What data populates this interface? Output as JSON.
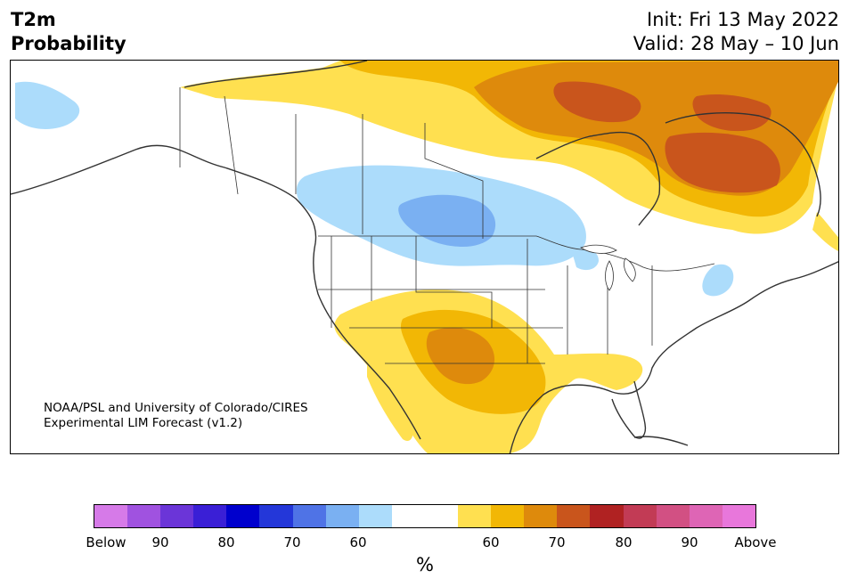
{
  "title": {
    "left_line1": "T2m",
    "left_line2": "Probability",
    "init": "Init: Fri 13 May 2022",
    "valid": "Valid: 28 May – 10 Jun"
  },
  "credit": {
    "line1": "NOAA/PSL and University of Colorado/CIRES",
    "line2": "Experimental LIM Forecast (v1.2)"
  },
  "colors": {
    "below": [
      "#d67ae8",
      "#a052e0",
      "#6b35d8",
      "#3a1fd6",
      "#0000cd",
      "#2437d9",
      "#4f73e6",
      "#7ab0f2",
      "#acdcfb"
    ],
    "neutral": [
      "#ffffff",
      "#ffffff"
    ],
    "above": [
      "#ffe050",
      "#f2b705",
      "#de8a0c",
      "#c9551c",
      "#b02222",
      "#c23b55",
      "#d25083",
      "#de65b5",
      "#e877db"
    ]
  },
  "colorbar": {
    "ticks": [
      "Below",
      "90",
      "80",
      "70",
      "60",
      "60",
      "70",
      "80",
      "90",
      "Above"
    ],
    "unit": "%"
  },
  "map": {
    "region": "North America",
    "features": [
      "coastlines",
      "state-borders",
      "province-borders",
      "country-borders"
    ]
  }
}
